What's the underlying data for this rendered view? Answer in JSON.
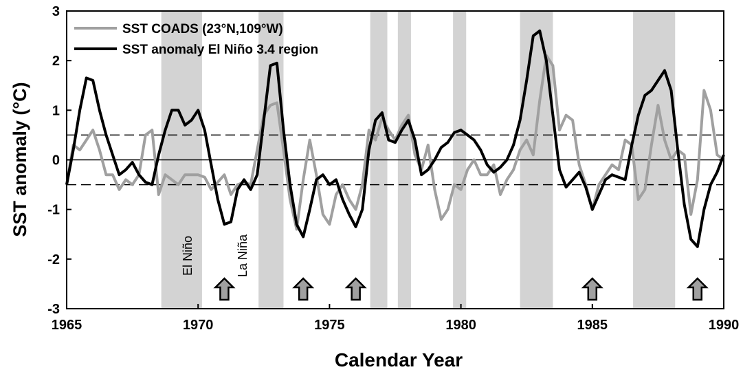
{
  "chart_data": {
    "type": "line",
    "xlabel": "Calendar Year",
    "ylabel": "SST anomaly (°C)",
    "x": [
      1965,
      1965.25,
      1965.5,
      1965.75,
      1966,
      1966.25,
      1966.5,
      1966.75,
      1967,
      1967.25,
      1967.5,
      1967.75,
      1968,
      1968.25,
      1968.5,
      1968.75,
      1969,
      1969.25,
      1969.5,
      1969.75,
      1970,
      1970.25,
      1970.5,
      1970.75,
      1971,
      1971.25,
      1971.5,
      1971.75,
      1972,
      1972.25,
      1972.5,
      1972.75,
      1973,
      1973.25,
      1973.5,
      1973.75,
      1974,
      1974.25,
      1974.5,
      1974.75,
      1975,
      1975.25,
      1975.5,
      1975.75,
      1976,
      1976.25,
      1976.5,
      1976.75,
      1977,
      1977.25,
      1977.5,
      1977.75,
      1978,
      1978.25,
      1978.5,
      1978.75,
      1979,
      1979.25,
      1979.5,
      1979.75,
      1980,
      1980.25,
      1980.5,
      1980.75,
      1981,
      1981.25,
      1981.5,
      1981.75,
      1982,
      1982.25,
      1982.5,
      1982.75,
      1983,
      1983.25,
      1983.5,
      1983.75,
      1984,
      1984.25,
      1984.5,
      1984.75,
      1985,
      1985.25,
      1985.5,
      1985.75,
      1986,
      1986.25,
      1986.5,
      1986.75,
      1987,
      1987.25,
      1987.5,
      1987.75,
      1988,
      1988.25,
      1988.5,
      1988.75,
      1989,
      1989.25,
      1989.5,
      1989.75,
      1990
    ],
    "series": [
      {
        "name": "SST COADS (23°N,109°W)",
        "color": "#a0a0a0",
        "width": 4,
        "values": [
          -0.5,
          0.3,
          0.2,
          0.4,
          0.6,
          0.2,
          -0.3,
          -0.3,
          -0.6,
          -0.4,
          -0.5,
          -0.3,
          0.5,
          0.6,
          -0.7,
          -0.3,
          -0.4,
          -0.5,
          -0.3,
          -0.3,
          -0.3,
          -0.35,
          -0.6,
          -0.45,
          -0.3,
          -0.7,
          -0.5,
          -0.45,
          -0.5,
          0.2,
          0.9,
          1.1,
          1.15,
          0.2,
          -0.8,
          -1.4,
          -0.4,
          0.4,
          -0.3,
          -1.1,
          -1.3,
          -0.7,
          -0.5,
          -0.8,
          -1.0,
          -0.5,
          0.6,
          0.4,
          0.85,
          0.6,
          0.4,
          0.7,
          0.9,
          0.1,
          -0.2,
          0.3,
          -0.6,
          -1.2,
          -1.0,
          -0.5,
          -0.6,
          -0.2,
          0.0,
          -0.3,
          -0.3,
          -0.1,
          -0.7,
          -0.4,
          -0.2,
          0.2,
          0.4,
          0.1,
          1.2,
          2.1,
          1.9,
          0.6,
          0.9,
          0.8,
          -0.1,
          -0.5,
          -1.0,
          -0.5,
          -0.3,
          -0.1,
          -0.2,
          0.4,
          0.3,
          -0.8,
          -0.6,
          0.3,
          1.1,
          0.4,
          0.0,
          0.2,
          0.1,
          -1.1,
          -0.4,
          1.4,
          1.0,
          0.1,
          0.0
        ]
      },
      {
        "name": "SST anomaly El Niño 3.4 region",
        "color": "#000000",
        "width": 4,
        "values": [
          -0.5,
          0.2,
          1.0,
          1.65,
          1.6,
          1.0,
          0.5,
          0.1,
          -0.3,
          -0.2,
          -0.05,
          -0.3,
          -0.45,
          -0.5,
          0.1,
          0.6,
          1.0,
          1.0,
          0.7,
          0.8,
          1.0,
          0.6,
          -0.1,
          -0.8,
          -1.3,
          -1.25,
          -0.6,
          -0.4,
          -0.6,
          -0.3,
          0.8,
          1.9,
          1.95,
          0.6,
          -0.5,
          -1.3,
          -1.55,
          -1.0,
          -0.4,
          -0.3,
          -0.5,
          -0.4,
          -0.8,
          -1.1,
          -1.35,
          -1.0,
          0.2,
          0.8,
          0.95,
          0.4,
          0.35,
          0.6,
          0.8,
          0.4,
          -0.3,
          -0.2,
          0.0,
          0.25,
          0.35,
          0.55,
          0.6,
          0.5,
          0.4,
          0.2,
          -0.1,
          -0.25,
          -0.15,
          0.0,
          0.3,
          0.8,
          1.6,
          2.5,
          2.6,
          2.0,
          0.9,
          -0.2,
          -0.55,
          -0.4,
          -0.25,
          -0.55,
          -1.0,
          -0.7,
          -0.4,
          -0.3,
          -0.35,
          -0.4,
          0.3,
          0.9,
          1.3,
          1.4,
          1.6,
          1.8,
          1.4,
          0.2,
          -0.9,
          -1.6,
          -1.75,
          -1.0,
          -0.5,
          -0.25,
          0.1
        ]
      }
    ],
    "xlim": [
      1965,
      1990
    ],
    "xticks": [
      1965,
      1970,
      1975,
      1980,
      1985,
      1990
    ],
    "ylim": [
      -3,
      3
    ],
    "yticks": [
      -3,
      -2,
      -1,
      0,
      1,
      2,
      3
    ],
    "shaded_periods": [
      [
        1968.6,
        1970.15
      ],
      [
        1972.3,
        1973.25
      ],
      [
        1976.55,
        1977.2
      ],
      [
        1977.6,
        1978.1
      ],
      [
        1979.7,
        1980.2
      ],
      [
        1982.25,
        1983.5
      ],
      [
        1986.55,
        1988.15
      ]
    ],
    "shade_color": "#d3d3d3",
    "reference_lines": [
      {
        "value": 0.5,
        "style": "dashed"
      },
      {
        "value": 0,
        "style": "solid"
      },
      {
        "value": -0.5,
        "style": "dashed"
      }
    ],
    "arrow_years": [
      1971,
      1974,
      1976,
      1985,
      1989
    ],
    "annotations": [
      "El Niño",
      "La Niña"
    ],
    "legend": "upper left"
  }
}
